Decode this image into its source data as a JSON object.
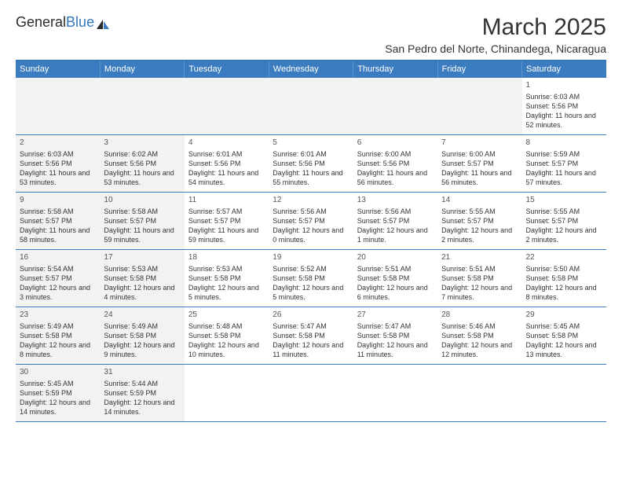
{
  "logo": {
    "left": "General",
    "right": "Blue"
  },
  "title": "March 2025",
  "location": "San Pedro del Norte, Chinandega, Nicaragua",
  "colors": {
    "header_bg": "#3b7cc0",
    "header_text": "#ffffff",
    "divider": "#3377bb",
    "cell_border": "#3b7cc0",
    "shaded_bg": "#f2f2f2",
    "text": "#333333"
  },
  "weekdays": [
    "Sunday",
    "Monday",
    "Tuesday",
    "Wednesday",
    "Thursday",
    "Friday",
    "Saturday"
  ],
  "weeks": [
    [
      {
        "day": "",
        "sunrise": "",
        "sunset": "",
        "daylight": "",
        "shaded": true
      },
      {
        "day": "",
        "sunrise": "",
        "sunset": "",
        "daylight": "",
        "shaded": true
      },
      {
        "day": "",
        "sunrise": "",
        "sunset": "",
        "daylight": "",
        "shaded": true
      },
      {
        "day": "",
        "sunrise": "",
        "sunset": "",
        "daylight": "",
        "shaded": true
      },
      {
        "day": "",
        "sunrise": "",
        "sunset": "",
        "daylight": "",
        "shaded": true
      },
      {
        "day": "",
        "sunrise": "",
        "sunset": "",
        "daylight": "",
        "shaded": true
      },
      {
        "day": "1",
        "sunrise": "Sunrise: 6:03 AM",
        "sunset": "Sunset: 5:56 PM",
        "daylight": "Daylight: 11 hours and 52 minutes.",
        "shaded": false
      }
    ],
    [
      {
        "day": "2",
        "sunrise": "Sunrise: 6:03 AM",
        "sunset": "Sunset: 5:56 PM",
        "daylight": "Daylight: 11 hours and 53 minutes.",
        "shaded": true
      },
      {
        "day": "3",
        "sunrise": "Sunrise: 6:02 AM",
        "sunset": "Sunset: 5:56 PM",
        "daylight": "Daylight: 11 hours and 53 minutes.",
        "shaded": true
      },
      {
        "day": "4",
        "sunrise": "Sunrise: 6:01 AM",
        "sunset": "Sunset: 5:56 PM",
        "daylight": "Daylight: 11 hours and 54 minutes.",
        "shaded": false
      },
      {
        "day": "5",
        "sunrise": "Sunrise: 6:01 AM",
        "sunset": "Sunset: 5:56 PM",
        "daylight": "Daylight: 11 hours and 55 minutes.",
        "shaded": false
      },
      {
        "day": "6",
        "sunrise": "Sunrise: 6:00 AM",
        "sunset": "Sunset: 5:56 PM",
        "daylight": "Daylight: 11 hours and 56 minutes.",
        "shaded": false
      },
      {
        "day": "7",
        "sunrise": "Sunrise: 6:00 AM",
        "sunset": "Sunset: 5:57 PM",
        "daylight": "Daylight: 11 hours and 56 minutes.",
        "shaded": false
      },
      {
        "day": "8",
        "sunrise": "Sunrise: 5:59 AM",
        "sunset": "Sunset: 5:57 PM",
        "daylight": "Daylight: 11 hours and 57 minutes.",
        "shaded": false
      }
    ],
    [
      {
        "day": "9",
        "sunrise": "Sunrise: 5:58 AM",
        "sunset": "Sunset: 5:57 PM",
        "daylight": "Daylight: 11 hours and 58 minutes.",
        "shaded": true
      },
      {
        "day": "10",
        "sunrise": "Sunrise: 5:58 AM",
        "sunset": "Sunset: 5:57 PM",
        "daylight": "Daylight: 11 hours and 59 minutes.",
        "shaded": true
      },
      {
        "day": "11",
        "sunrise": "Sunrise: 5:57 AM",
        "sunset": "Sunset: 5:57 PM",
        "daylight": "Daylight: 11 hours and 59 minutes.",
        "shaded": false
      },
      {
        "day": "12",
        "sunrise": "Sunrise: 5:56 AM",
        "sunset": "Sunset: 5:57 PM",
        "daylight": "Daylight: 12 hours and 0 minutes.",
        "shaded": false
      },
      {
        "day": "13",
        "sunrise": "Sunrise: 5:56 AM",
        "sunset": "Sunset: 5:57 PM",
        "daylight": "Daylight: 12 hours and 1 minute.",
        "shaded": false
      },
      {
        "day": "14",
        "sunrise": "Sunrise: 5:55 AM",
        "sunset": "Sunset: 5:57 PM",
        "daylight": "Daylight: 12 hours and 2 minutes.",
        "shaded": false
      },
      {
        "day": "15",
        "sunrise": "Sunrise: 5:55 AM",
        "sunset": "Sunset: 5:57 PM",
        "daylight": "Daylight: 12 hours and 2 minutes.",
        "shaded": false
      }
    ],
    [
      {
        "day": "16",
        "sunrise": "Sunrise: 5:54 AM",
        "sunset": "Sunset: 5:57 PM",
        "daylight": "Daylight: 12 hours and 3 minutes.",
        "shaded": true
      },
      {
        "day": "17",
        "sunrise": "Sunrise: 5:53 AM",
        "sunset": "Sunset: 5:58 PM",
        "daylight": "Daylight: 12 hours and 4 minutes.",
        "shaded": true
      },
      {
        "day": "18",
        "sunrise": "Sunrise: 5:53 AM",
        "sunset": "Sunset: 5:58 PM",
        "daylight": "Daylight: 12 hours and 5 minutes.",
        "shaded": false
      },
      {
        "day": "19",
        "sunrise": "Sunrise: 5:52 AM",
        "sunset": "Sunset: 5:58 PM",
        "daylight": "Daylight: 12 hours and 5 minutes.",
        "shaded": false
      },
      {
        "day": "20",
        "sunrise": "Sunrise: 5:51 AM",
        "sunset": "Sunset: 5:58 PM",
        "daylight": "Daylight: 12 hours and 6 minutes.",
        "shaded": false
      },
      {
        "day": "21",
        "sunrise": "Sunrise: 5:51 AM",
        "sunset": "Sunset: 5:58 PM",
        "daylight": "Daylight: 12 hours and 7 minutes.",
        "shaded": false
      },
      {
        "day": "22",
        "sunrise": "Sunrise: 5:50 AM",
        "sunset": "Sunset: 5:58 PM",
        "daylight": "Daylight: 12 hours and 8 minutes.",
        "shaded": false
      }
    ],
    [
      {
        "day": "23",
        "sunrise": "Sunrise: 5:49 AM",
        "sunset": "Sunset: 5:58 PM",
        "daylight": "Daylight: 12 hours and 8 minutes.",
        "shaded": true
      },
      {
        "day": "24",
        "sunrise": "Sunrise: 5:49 AM",
        "sunset": "Sunset: 5:58 PM",
        "daylight": "Daylight: 12 hours and 9 minutes.",
        "shaded": true
      },
      {
        "day": "25",
        "sunrise": "Sunrise: 5:48 AM",
        "sunset": "Sunset: 5:58 PM",
        "daylight": "Daylight: 12 hours and 10 minutes.",
        "shaded": false
      },
      {
        "day": "26",
        "sunrise": "Sunrise: 5:47 AM",
        "sunset": "Sunset: 5:58 PM",
        "daylight": "Daylight: 12 hours and 11 minutes.",
        "shaded": false
      },
      {
        "day": "27",
        "sunrise": "Sunrise: 5:47 AM",
        "sunset": "Sunset: 5:58 PM",
        "daylight": "Daylight: 12 hours and 11 minutes.",
        "shaded": false
      },
      {
        "day": "28",
        "sunrise": "Sunrise: 5:46 AM",
        "sunset": "Sunset: 5:58 PM",
        "daylight": "Daylight: 12 hours and 12 minutes.",
        "shaded": false
      },
      {
        "day": "29",
        "sunrise": "Sunrise: 5:45 AM",
        "sunset": "Sunset: 5:58 PM",
        "daylight": "Daylight: 12 hours and 13 minutes.",
        "shaded": false
      }
    ],
    [
      {
        "day": "30",
        "sunrise": "Sunrise: 5:45 AM",
        "sunset": "Sunset: 5:59 PM",
        "daylight": "Daylight: 12 hours and 14 minutes.",
        "shaded": true
      },
      {
        "day": "31",
        "sunrise": "Sunrise: 5:44 AM",
        "sunset": "Sunset: 5:59 PM",
        "daylight": "Daylight: 12 hours and 14 minutes.",
        "shaded": true
      },
      {
        "day": "",
        "sunrise": "",
        "sunset": "",
        "daylight": "",
        "shaded": false
      },
      {
        "day": "",
        "sunrise": "",
        "sunset": "",
        "daylight": "",
        "shaded": false
      },
      {
        "day": "",
        "sunrise": "",
        "sunset": "",
        "daylight": "",
        "shaded": false
      },
      {
        "day": "",
        "sunrise": "",
        "sunset": "",
        "daylight": "",
        "shaded": false
      },
      {
        "day": "",
        "sunrise": "",
        "sunset": "",
        "daylight": "",
        "shaded": false
      }
    ]
  ]
}
